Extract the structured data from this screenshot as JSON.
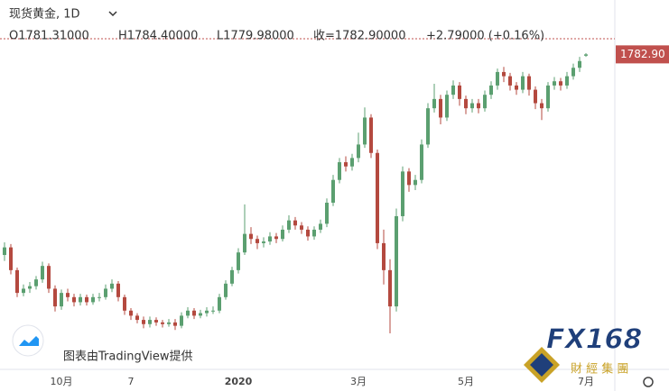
{
  "chart_data": {
    "type": "candlestick",
    "title": "现货黄金, 1D",
    "header": {
      "open": "O1781.31000",
      "high": "H1784.40000",
      "low": "L1779.98000",
      "close": "收=1782.90000",
      "change": "+2.79000 (+0.16%)"
    },
    "last_price": {
      "value": 1782.9,
      "label": "1782.90"
    },
    "watermark": "图表由TradingView提供",
    "logo": {
      "brand": "FX168",
      "subtitle": "財 經 集 團"
    },
    "up_color": "#5b9f70",
    "down_color": "#b4493f",
    "ylim": [
      1420,
      1810
    ],
    "categories": [
      null,
      null,
      null,
      null,
      null,
      null,
      null,
      null,
      null,
      "10月",
      null,
      null,
      null,
      null,
      null,
      null,
      null,
      null,
      null,
      null,
      "7",
      null,
      null,
      null,
      null,
      null,
      null,
      null,
      null,
      null,
      null,
      null,
      null,
      null,
      null,
      null,
      null,
      "2020",
      null,
      null,
      null,
      null,
      null,
      null,
      null,
      null,
      null,
      null,
      null,
      null,
      null,
      null,
      null,
      null,
      null,
      null,
      "3月",
      null,
      null,
      null,
      null,
      null,
      null,
      null,
      null,
      null,
      null,
      null,
      null,
      null,
      null,
      null,
      null,
      "5月",
      null,
      null,
      null,
      null,
      null,
      null,
      null,
      null,
      null,
      null,
      null,
      null,
      null,
      null,
      null,
      null,
      null,
      null,
      "7月"
    ],
    "open": [
      1545,
      1554,
      1527,
      1500,
      1505,
      1508,
      1516,
      1532,
      1505,
      1484,
      1500,
      1495,
      1489,
      1495,
      1489,
      1495,
      1495,
      1505,
      1511,
      1495,
      1479,
      1473,
      1468,
      1463,
      1468,
      1465,
      1463,
      1465,
      1461,
      1473,
      1479,
      1473,
      1476,
      1479,
      1479,
      1495,
      1511,
      1527,
      1548,
      1570,
      1564,
      1559,
      1561,
      1567,
      1564,
      1575,
      1586,
      1580,
      1575,
      1567,
      1575,
      1582,
      1607,
      1634,
      1655,
      1650,
      1660,
      1676,
      1708,
      1666,
      1559,
      1527,
      1484,
      1591,
      1644,
      1628,
      1634,
      1676,
      1719,
      1730,
      1708,
      1735,
      1746,
      1730,
      1719,
      1725,
      1719,
      1735,
      1746,
      1762,
      1757,
      1746,
      1741,
      1757,
      1741,
      1725,
      1719,
      1746,
      1751,
      1746,
      1757,
      1767,
      1781.31
    ],
    "high": [
      1560,
      1558,
      1530,
      1510,
      1513,
      1520,
      1537,
      1535,
      1509,
      1504,
      1505,
      1499,
      1499,
      1498,
      1499,
      1500,
      1510,
      1516,
      1514,
      1498,
      1482,
      1476,
      1472,
      1472,
      1471,
      1468,
      1469,
      1469,
      1477,
      1483,
      1482,
      1480,
      1483,
      1484,
      1499,
      1515,
      1531,
      1553,
      1605,
      1578,
      1568,
      1566,
      1572,
      1571,
      1580,
      1592,
      1590,
      1584,
      1579,
      1579,
      1587,
      1612,
      1640,
      1660,
      1662,
      1665,
      1690,
      1720,
      1712,
      1670,
      1575,
      1540,
      1600,
      1650,
      1648,
      1640,
      1682,
      1725,
      1748,
      1735,
      1740,
      1752,
      1750,
      1734,
      1730,
      1730,
      1740,
      1751,
      1766,
      1768,
      1761,
      1750,
      1762,
      1760,
      1745,
      1730,
      1750,
      1756,
      1755,
      1762,
      1772,
      1780,
      1784.4
    ],
    "low": [
      1538,
      1522,
      1495,
      1496,
      1500,
      1504,
      1512,
      1500,
      1478,
      1480,
      1490,
      1484,
      1485,
      1485,
      1486,
      1490,
      1492,
      1501,
      1490,
      1474,
      1468,
      1464,
      1458,
      1459,
      1461,
      1459,
      1460,
      1456,
      1458,
      1470,
      1469,
      1470,
      1472,
      1475,
      1476,
      1492,
      1508,
      1523,
      1545,
      1558,
      1552,
      1554,
      1557,
      1559,
      1561,
      1571,
      1575,
      1570,
      1562,
      1563,
      1571,
      1578,
      1603,
      1630,
      1644,
      1645,
      1655,
      1672,
      1660,
      1552,
      1510,
      1452,
      1478,
      1585,
      1620,
      1622,
      1630,
      1672,
      1714,
      1700,
      1704,
      1730,
      1722,
      1712,
      1714,
      1713,
      1715,
      1730,
      1741,
      1750,
      1740,
      1735,
      1737,
      1734,
      1718,
      1705,
      1715,
      1741,
      1740,
      1742,
      1753,
      1762,
      1779.98
    ],
    "close": [
      1554,
      1527,
      1500,
      1505,
      1508,
      1516,
      1532,
      1505,
      1484,
      1500,
      1495,
      1489,
      1495,
      1489,
      1495,
      1495,
      1505,
      1511,
      1495,
      1479,
      1473,
      1468,
      1463,
      1468,
      1465,
      1463,
      1465,
      1461,
      1473,
      1479,
      1473,
      1476,
      1479,
      1479,
      1495,
      1511,
      1527,
      1548,
      1570,
      1564,
      1559,
      1561,
      1567,
      1564,
      1575,
      1586,
      1580,
      1575,
      1567,
      1575,
      1582,
      1607,
      1634,
      1655,
      1650,
      1660,
      1676,
      1708,
      1666,
      1559,
      1527,
      1484,
      1591,
      1644,
      1628,
      1634,
      1676,
      1719,
      1730,
      1708,
      1735,
      1746,
      1730,
      1719,
      1725,
      1719,
      1735,
      1746,
      1762,
      1757,
      1746,
      1741,
      1757,
      1741,
      1725,
      1719,
      1746,
      1751,
      1746,
      1757,
      1767,
      1775,
      1782.9
    ]
  }
}
